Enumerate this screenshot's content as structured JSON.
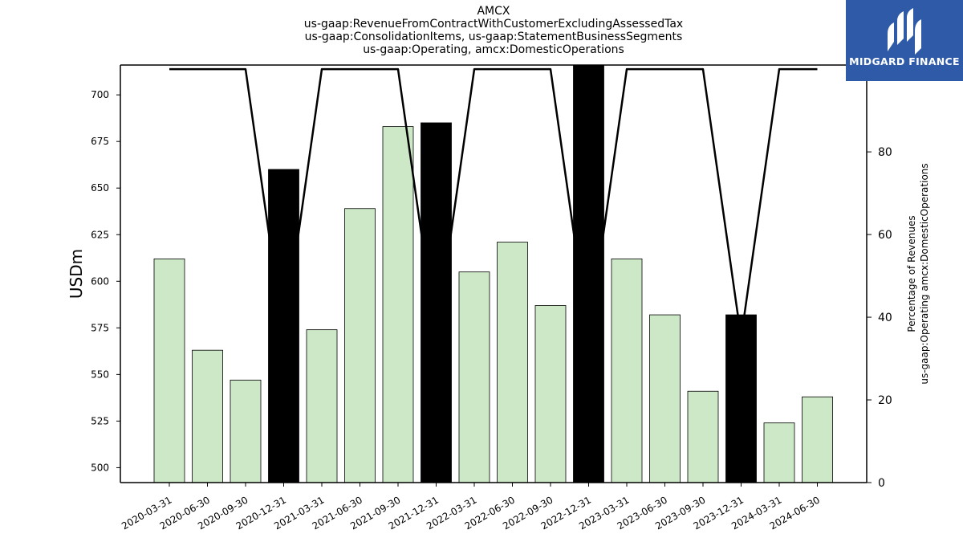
{
  "title_lines": [
    "AMCX",
    "us-gaap:RevenueFromContractWithCustomerExcludingAssessedTax",
    "us-gaap:ConsolidationItems, us-gaap:StatementBusinessSegments",
    "us-gaap:Operating, amcx:DomesticOperations"
  ],
  "logo": {
    "text": "MIDGARD FINANCE",
    "icon": "midgard-logo-icon",
    "background": "#2f5aa8"
  },
  "chart_data": {
    "type": "bar",
    "categories": [
      "2020-03-31",
      "2020-06-30",
      "2020-09-30",
      "2020-12-31",
      "2021-03-31",
      "2021-06-30",
      "2021-09-30",
      "2021-12-31",
      "2022-03-31",
      "2022-06-30",
      "2022-09-30",
      "2022-12-31",
      "2023-03-31",
      "2023-06-30",
      "2023-09-30",
      "2023-12-31",
      "2024-03-31",
      "2024-06-30"
    ],
    "series": [
      {
        "values": [
          612,
          563,
          547,
          660,
          574,
          639,
          683,
          685,
          605,
          621,
          587,
          716,
          612,
          582,
          541,
          582,
          524,
          538
        ],
        "colors": [
          "#cde8c7",
          "#cde8c7",
          "#cde8c7",
          "#000000",
          "#cde8c7",
          "#cde8c7",
          "#cde8c7",
          "#000000",
          "#cde8c7",
          "#cde8c7",
          "#cde8c7",
          "#000000",
          "#cde8c7",
          "#cde8c7",
          "#cde8c7",
          "#000000",
          "#cde8c7",
          "#cde8c7"
        ],
        "axis": "left"
      },
      {
        "type": "line",
        "values": [
          100,
          100,
          100,
          35,
          100,
          100,
          100,
          35,
          100,
          100,
          100,
          35,
          100,
          100,
          100,
          35,
          100,
          100
        ],
        "color": "#000000",
        "axis": "right"
      }
    ],
    "ylabel": "USDm",
    "y2label_lines": [
      "Percentage of Revenues",
      "us-gaap:Operating amcx:DomesticOperations"
    ],
    "ylim": [
      492,
      716
    ],
    "y2lim": [
      0,
      101
    ],
    "yticks": [
      500,
      525,
      550,
      575,
      600,
      625,
      650,
      675,
      700
    ],
    "y2ticks": [
      0,
      20,
      40,
      60,
      80,
      100
    ],
    "grid": false,
    "legend": "none"
  }
}
